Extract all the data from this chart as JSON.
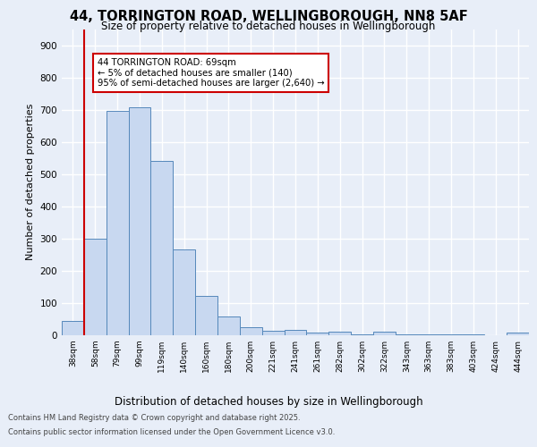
{
  "title_line1": "44, TORRINGTON ROAD, WELLINGBOROUGH, NN8 5AF",
  "title_line2": "Size of property relative to detached houses in Wellingborough",
  "xlabel": "Distribution of detached houses by size in Wellingborough",
  "ylabel": "Number of detached properties",
  "categories": [
    "38sqm",
    "58sqm",
    "79sqm",
    "99sqm",
    "119sqm",
    "140sqm",
    "160sqm",
    "180sqm",
    "200sqm",
    "221sqm",
    "241sqm",
    "261sqm",
    "282sqm",
    "302sqm",
    "322sqm",
    "343sqm",
    "363sqm",
    "383sqm",
    "403sqm",
    "424sqm",
    "444sqm"
  ],
  "values": [
    45,
    300,
    695,
    707,
    540,
    265,
    122,
    58,
    25,
    15,
    18,
    8,
    10,
    3,
    10,
    3,
    4,
    2,
    2,
    1,
    8
  ],
  "bar_color": "#c8d8f0",
  "bar_edge_color": "#5588bb",
  "vline_x_index": 1,
  "vline_color": "#cc0000",
  "annotation_text": "44 TORRINGTON ROAD: 69sqm\n← 5% of detached houses are smaller (140)\n95% of semi-detached houses are larger (2,640) →",
  "annotation_box_color": "#cc0000",
  "bg_color": "#e8eef8",
  "plot_bg_color": "#e8eef8",
  "grid_color": "#ffffff",
  "footer_line1": "Contains HM Land Registry data © Crown copyright and database right 2025.",
  "footer_line2": "Contains public sector information licensed under the Open Government Licence v3.0.",
  "ylim": [
    0,
    950
  ],
  "yticks": [
    0,
    100,
    200,
    300,
    400,
    500,
    600,
    700,
    800,
    900
  ]
}
